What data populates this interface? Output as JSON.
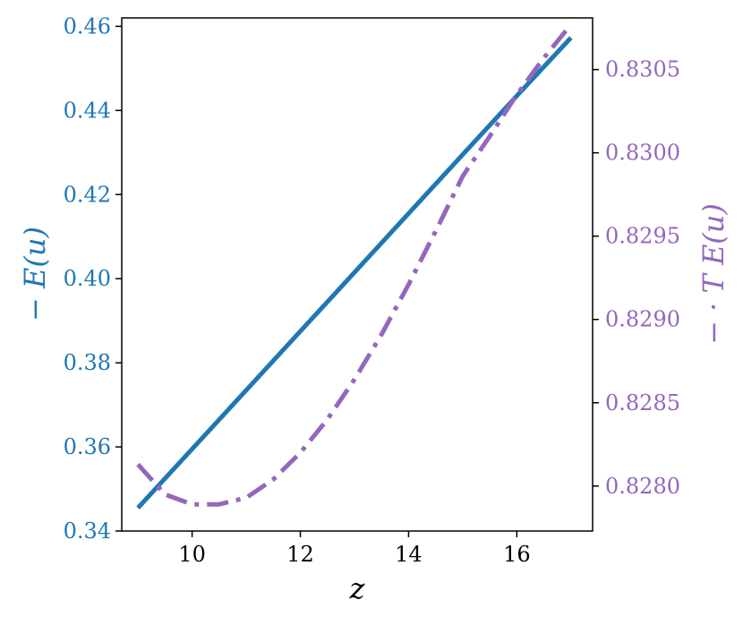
{
  "chart_data": {
    "type": "line",
    "xlabel": "z",
    "ylabel_left": "− E(u)",
    "ylabel_right": "− · T E(u)",
    "xlim": [
      8.7,
      17.4
    ],
    "ylim_left": [
      0.34,
      0.462
    ],
    "ylim_right": [
      0.82773,
      0.83081
    ],
    "xticks": [
      10,
      12,
      14,
      16
    ],
    "xtick_labels": [
      "10",
      "12",
      "14",
      "16"
    ],
    "yticks_left": [
      0.34,
      0.36,
      0.38,
      0.4,
      0.42,
      0.44,
      0.46
    ],
    "ytick_labels_left": [
      "0.34",
      "0.36",
      "0.38",
      "0.40",
      "0.42",
      "0.44",
      "0.46"
    ],
    "yticks_right": [
      0.828,
      0.8285,
      0.829,
      0.8295,
      0.83,
      0.8305
    ],
    "ytick_labels_right": [
      "0.8280",
      "0.8285",
      "0.8290",
      "0.8295",
      "0.8300",
      "0.8305"
    ],
    "grid": false,
    "series": [
      {
        "axis": "left",
        "style": "solid",
        "color": "#1f77b4",
        "x": [
          9.0,
          10.0,
          11.0,
          12.0,
          13.0,
          14.0,
          15.0,
          16.0,
          17.0
        ],
        "y": [
          0.3455,
          0.3595,
          0.3735,
          0.3875,
          0.4015,
          0.4155,
          0.4295,
          0.4435,
          0.4573
        ]
      },
      {
        "axis": "right",
        "style": "dashdot",
        "color": "#9467bd",
        "x": [
          9.0,
          9.5,
          10.0,
          10.5,
          11.0,
          11.5,
          12.0,
          12.5,
          13.0,
          13.5,
          14.0,
          14.5,
          15.0,
          15.5,
          16.0,
          16.5,
          17.0
        ],
        "y": [
          0.82813,
          0.82795,
          0.82789,
          0.82789,
          0.82793,
          0.82804,
          0.8282,
          0.8284,
          0.82864,
          0.82891,
          0.82921,
          0.82953,
          0.82986,
          0.8301,
          0.83035,
          0.83057,
          0.83077
        ]
      }
    ]
  },
  "colors": {
    "left_axis": "#1f77b4",
    "right_axis": "#9467bd",
    "frame": "#000000"
  }
}
